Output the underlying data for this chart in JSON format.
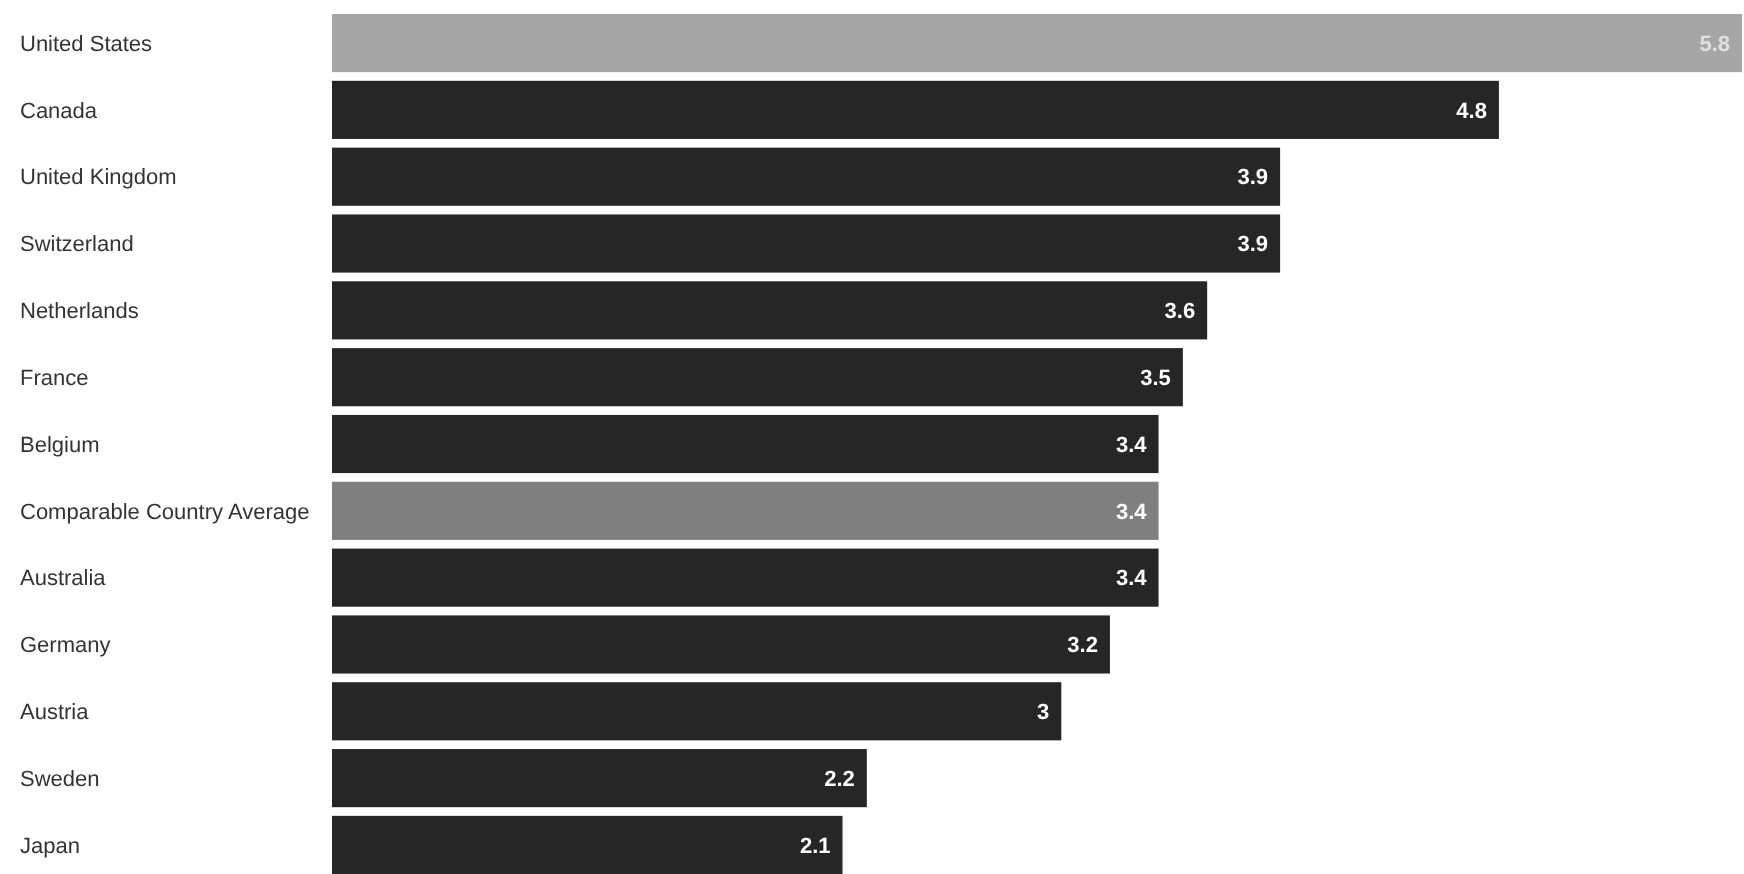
{
  "chart_data": {
    "type": "bar",
    "orientation": "horizontal",
    "data_labels": true,
    "categories": [
      "United States",
      "Canada",
      "United Kingdom",
      "Switzerland",
      "Netherlands",
      "France",
      "Belgium",
      "Comparable Country Average",
      "Australia",
      "Germany",
      "Austria",
      "Sweden",
      "Japan"
    ],
    "values": [
      5.8,
      4.8,
      3.9,
      3.9,
      3.6,
      3.5,
      3.4,
      3.4,
      3.4,
      3.2,
      3,
      2.2,
      2.1
    ],
    "colors": [
      "#a6a6a6",
      "#262626",
      "#262626",
      "#262626",
      "#262626",
      "#262626",
      "#262626",
      "#7f7f7f",
      "#262626",
      "#262626",
      "#262626",
      "#262626",
      "#262626"
    ]
  }
}
